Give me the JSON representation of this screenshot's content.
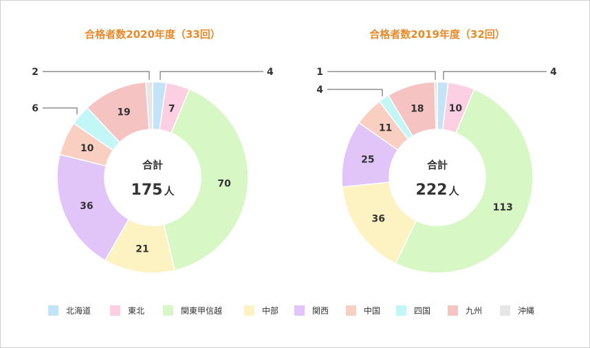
{
  "chart_data": [
    {
      "type": "pie",
      "title": "合格者数2020年度（33回）",
      "center_label": "合計",
      "total_value": "175",
      "total_unit": "人",
      "categories": [
        "北海道",
        "東北",
        "関東甲信越",
        "中部",
        "関西",
        "中国",
        "四国",
        "九州",
        "沖縄"
      ],
      "values": [
        4,
        7,
        70,
        21,
        36,
        10,
        6,
        19,
        2
      ]
    },
    {
      "type": "pie",
      "title": "合格者数2019年度（32回）",
      "center_label": "合計",
      "total_value": "222",
      "total_unit": "人",
      "categories": [
        "北海道",
        "東北",
        "関東甲信越",
        "中部",
        "関西",
        "中国",
        "四国",
        "九州",
        "沖縄"
      ],
      "values": [
        4,
        10,
        113,
        36,
        25,
        11,
        4,
        18,
        1
      ]
    }
  ],
  "legend": {
    "items": [
      {
        "label": "北海道",
        "color": "#c3e3f8"
      },
      {
        "label": "東北",
        "color": "#fdcfe2"
      },
      {
        "label": "関東甲信越",
        "color": "#d7f8c4"
      },
      {
        "label": "中部",
        "color": "#fdf2c2"
      },
      {
        "label": "関西",
        "color": "#e2c5f8"
      },
      {
        "label": "中国",
        "color": "#f9cfc2"
      },
      {
        "label": "四国",
        "color": "#c3f6f6"
      },
      {
        "label": "九州",
        "color": "#f6c3c3"
      },
      {
        "label": "沖縄",
        "color": "#e6e6e6"
      }
    ]
  },
  "colors": {
    "title": "#e8892a",
    "label": "#333333",
    "leader_line": "#555555"
  }
}
